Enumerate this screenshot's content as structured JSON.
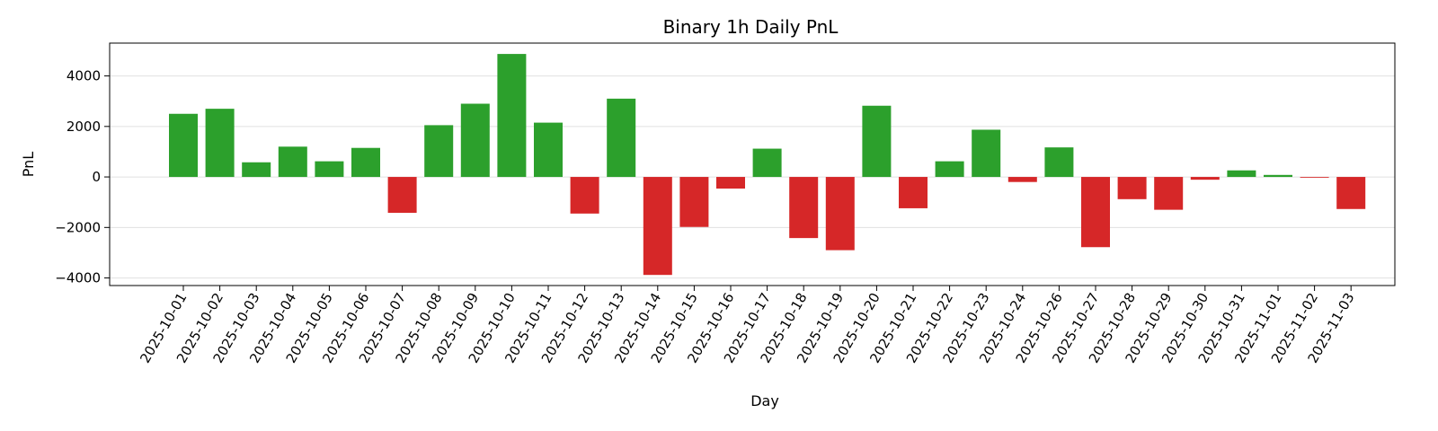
{
  "chart_data": {
    "type": "bar",
    "title": "Binary 1h Daily PnL",
    "xlabel": "Day",
    "ylabel": "PnL",
    "ylim": [
      -4300,
      5300
    ],
    "yticks": [
      -4000,
      -2000,
      0,
      2000,
      4000
    ],
    "grid": "horizontal",
    "colors": {
      "positive": "#2ca02c",
      "negative": "#d62728"
    },
    "categories": [
      "2025-10-01",
      "2025-10-02",
      "2025-10-03",
      "2025-10-04",
      "2025-10-05",
      "2025-10-06",
      "2025-10-07",
      "2025-10-08",
      "2025-10-09",
      "2025-10-10",
      "2025-10-11",
      "2025-10-12",
      "2025-10-13",
      "2025-10-14",
      "2025-10-15",
      "2025-10-16",
      "2025-10-17",
      "2025-10-18",
      "2025-10-19",
      "2025-10-20",
      "2025-10-21",
      "2025-10-22",
      "2025-10-23",
      "2025-10-24",
      "2025-10-26",
      "2025-10-27",
      "2025-10-28",
      "2025-10-29",
      "2025-10-30",
      "2025-10-31",
      "2025-11-01",
      "2025-11-02",
      "2025-11-03"
    ],
    "values": [
      2500,
      2700,
      580,
      1200,
      620,
      1150,
      -1420,
      2050,
      2900,
      4870,
      2150,
      -1450,
      3100,
      -3880,
      -1980,
      -460,
      1120,
      -2420,
      -2900,
      2820,
      -1240,
      620,
      1870,
      -200,
      1170,
      -2780,
      -880,
      -1300,
      -110,
      260,
      80,
      -30,
      -1270
    ]
  }
}
